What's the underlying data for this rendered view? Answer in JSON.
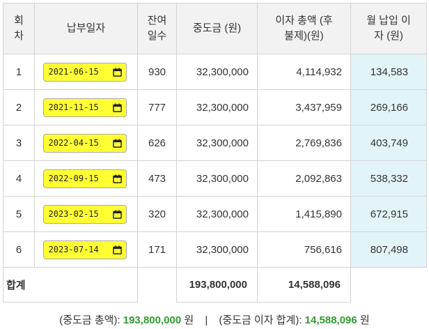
{
  "headers": {
    "round": "회\n차",
    "pay_date": "납부일자",
    "remaining_days": "잔여\n일수",
    "interim_amount": "중도금 (원)",
    "total_interest": "이자 총액 (후\n불제)(원)",
    "monthly_interest": "월 납입 이\n자 (원)"
  },
  "rows": [
    {
      "round": "1",
      "date": "2021-06-15",
      "days": "930",
      "amount": "32,300,000",
      "interest": "4,114,932",
      "monthly": "134,583"
    },
    {
      "round": "2",
      "date": "2021-11-15",
      "days": "777",
      "amount": "32,300,000",
      "interest": "3,437,959",
      "monthly": "269,166"
    },
    {
      "round": "3",
      "date": "2022-04-15",
      "days": "626",
      "amount": "32,300,000",
      "interest": "2,769,836",
      "monthly": "403,749"
    },
    {
      "round": "4",
      "date": "2022-09-15",
      "days": "473",
      "amount": "32,300,000",
      "interest": "2,092,863",
      "monthly": "538,332"
    },
    {
      "round": "5",
      "date": "2023-02-15",
      "days": "320",
      "amount": "32,300,000",
      "interest": "1,415,890",
      "monthly": "672,915"
    },
    {
      "round": "6",
      "date": "2023-07-14",
      "days": "171",
      "amount": "32,300,000",
      "interest": "756,616",
      "monthly": "807,498"
    }
  ],
  "total": {
    "label": "합계",
    "amount": "193,800,000",
    "interest": "14,588,096"
  },
  "summary": {
    "total_amount_label": "(중도금 총액):",
    "total_amount_value": "193,800,000",
    "unit": "원",
    "separator": "|",
    "total_interest_label": "(중도금 이자 합계):",
    "total_interest_value": "14,588,096"
  },
  "colors": {
    "date_input_bg": "#ffff33",
    "monthly_col_bg": "#e3f4f9",
    "summary_highlight": "#2e9c2e",
    "header_bg": "#f2f2f2"
  },
  "icons": {
    "date_picker": "calendar-icon"
  }
}
